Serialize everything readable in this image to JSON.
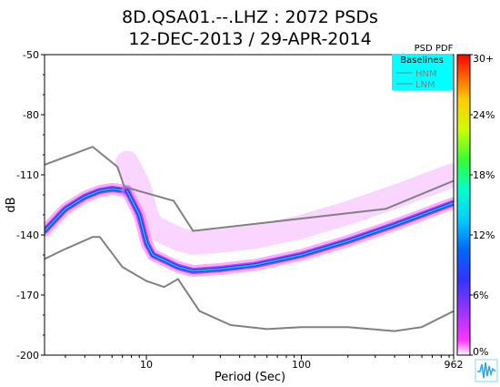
{
  "chart_data": {
    "type": "heatmap",
    "title": "8D.QSA01.--.LHZ : 2072 PSDs",
    "subtitle": "12-DEC-2013 / 29-APR-2014",
    "xlabel": "Period (Sec)",
    "ylabel": "dB",
    "x_scale": "log",
    "xlim": [
      2.2,
      962
    ],
    "ylim": [
      -200,
      -50
    ],
    "x_ticks": [
      {
        "value": 10,
        "label": "10"
      },
      {
        "value": 100,
        "label": "100"
      },
      {
        "value": 962,
        "label": "962"
      }
    ],
    "y_ticks": [
      {
        "value": -50,
        "label": "-50"
      },
      {
        "value": -80,
        "label": "-80"
      },
      {
        "value": -110,
        "label": "-110"
      },
      {
        "value": -140,
        "label": "-140"
      },
      {
        "value": -170,
        "label": "-170"
      },
      {
        "value": -200,
        "label": "-200"
      }
    ],
    "grid": false,
    "colorbar": {
      "label": "PSD PDF",
      "range": [
        0,
        30
      ],
      "tick_labels": [
        "0%",
        "6%",
        "12%",
        "18%",
        "24%",
        "30+"
      ],
      "tick_values": [
        0,
        6,
        12,
        18,
        24,
        30
      ]
    },
    "legend": {
      "title": "Baselines",
      "position": "top-right",
      "background": "#00ffff",
      "entries": [
        "HNM",
        "LNM"
      ]
    },
    "series": [
      {
        "name": "HNM",
        "color": "#808080",
        "x": [
          2.2,
          4.5,
          6.5,
          7.2,
          15,
          20,
          350,
          962
        ],
        "y": [
          -105,
          -96,
          -106,
          -116,
          -123,
          -138,
          -127,
          -113
        ]
      },
      {
        "name": "LNM",
        "color": "#808080",
        "x": [
          2.2,
          3,
          4.5,
          5,
          7,
          10,
          13,
          16,
          22,
          35,
          60,
          100,
          200,
          400,
          600,
          962
        ],
        "y": [
          -152,
          -147,
          -141,
          -141,
          -156,
          -163,
          -166,
          -162,
          -178,
          -185,
          -187,
          -186,
          -186,
          -188,
          -186,
          -178
        ]
      }
    ],
    "density_bands": [
      {
        "x": [
          2.2,
          3,
          4,
          5,
          6,
          7.5
        ],
        "y": [
          -138,
          -127,
          -121,
          -118,
          -117,
          -118
        ]
      },
      {
        "x": [
          7.5,
          9,
          10,
          11,
          12.5,
          16,
          20,
          30,
          50,
          100,
          200,
          400,
          700,
          962
        ],
        "y": [
          -118,
          -130,
          -144,
          -150,
          -152,
          -156,
          -158,
          -157,
          -155,
          -150,
          -143,
          -135,
          -128,
          -124
        ]
      }
    ]
  }
}
